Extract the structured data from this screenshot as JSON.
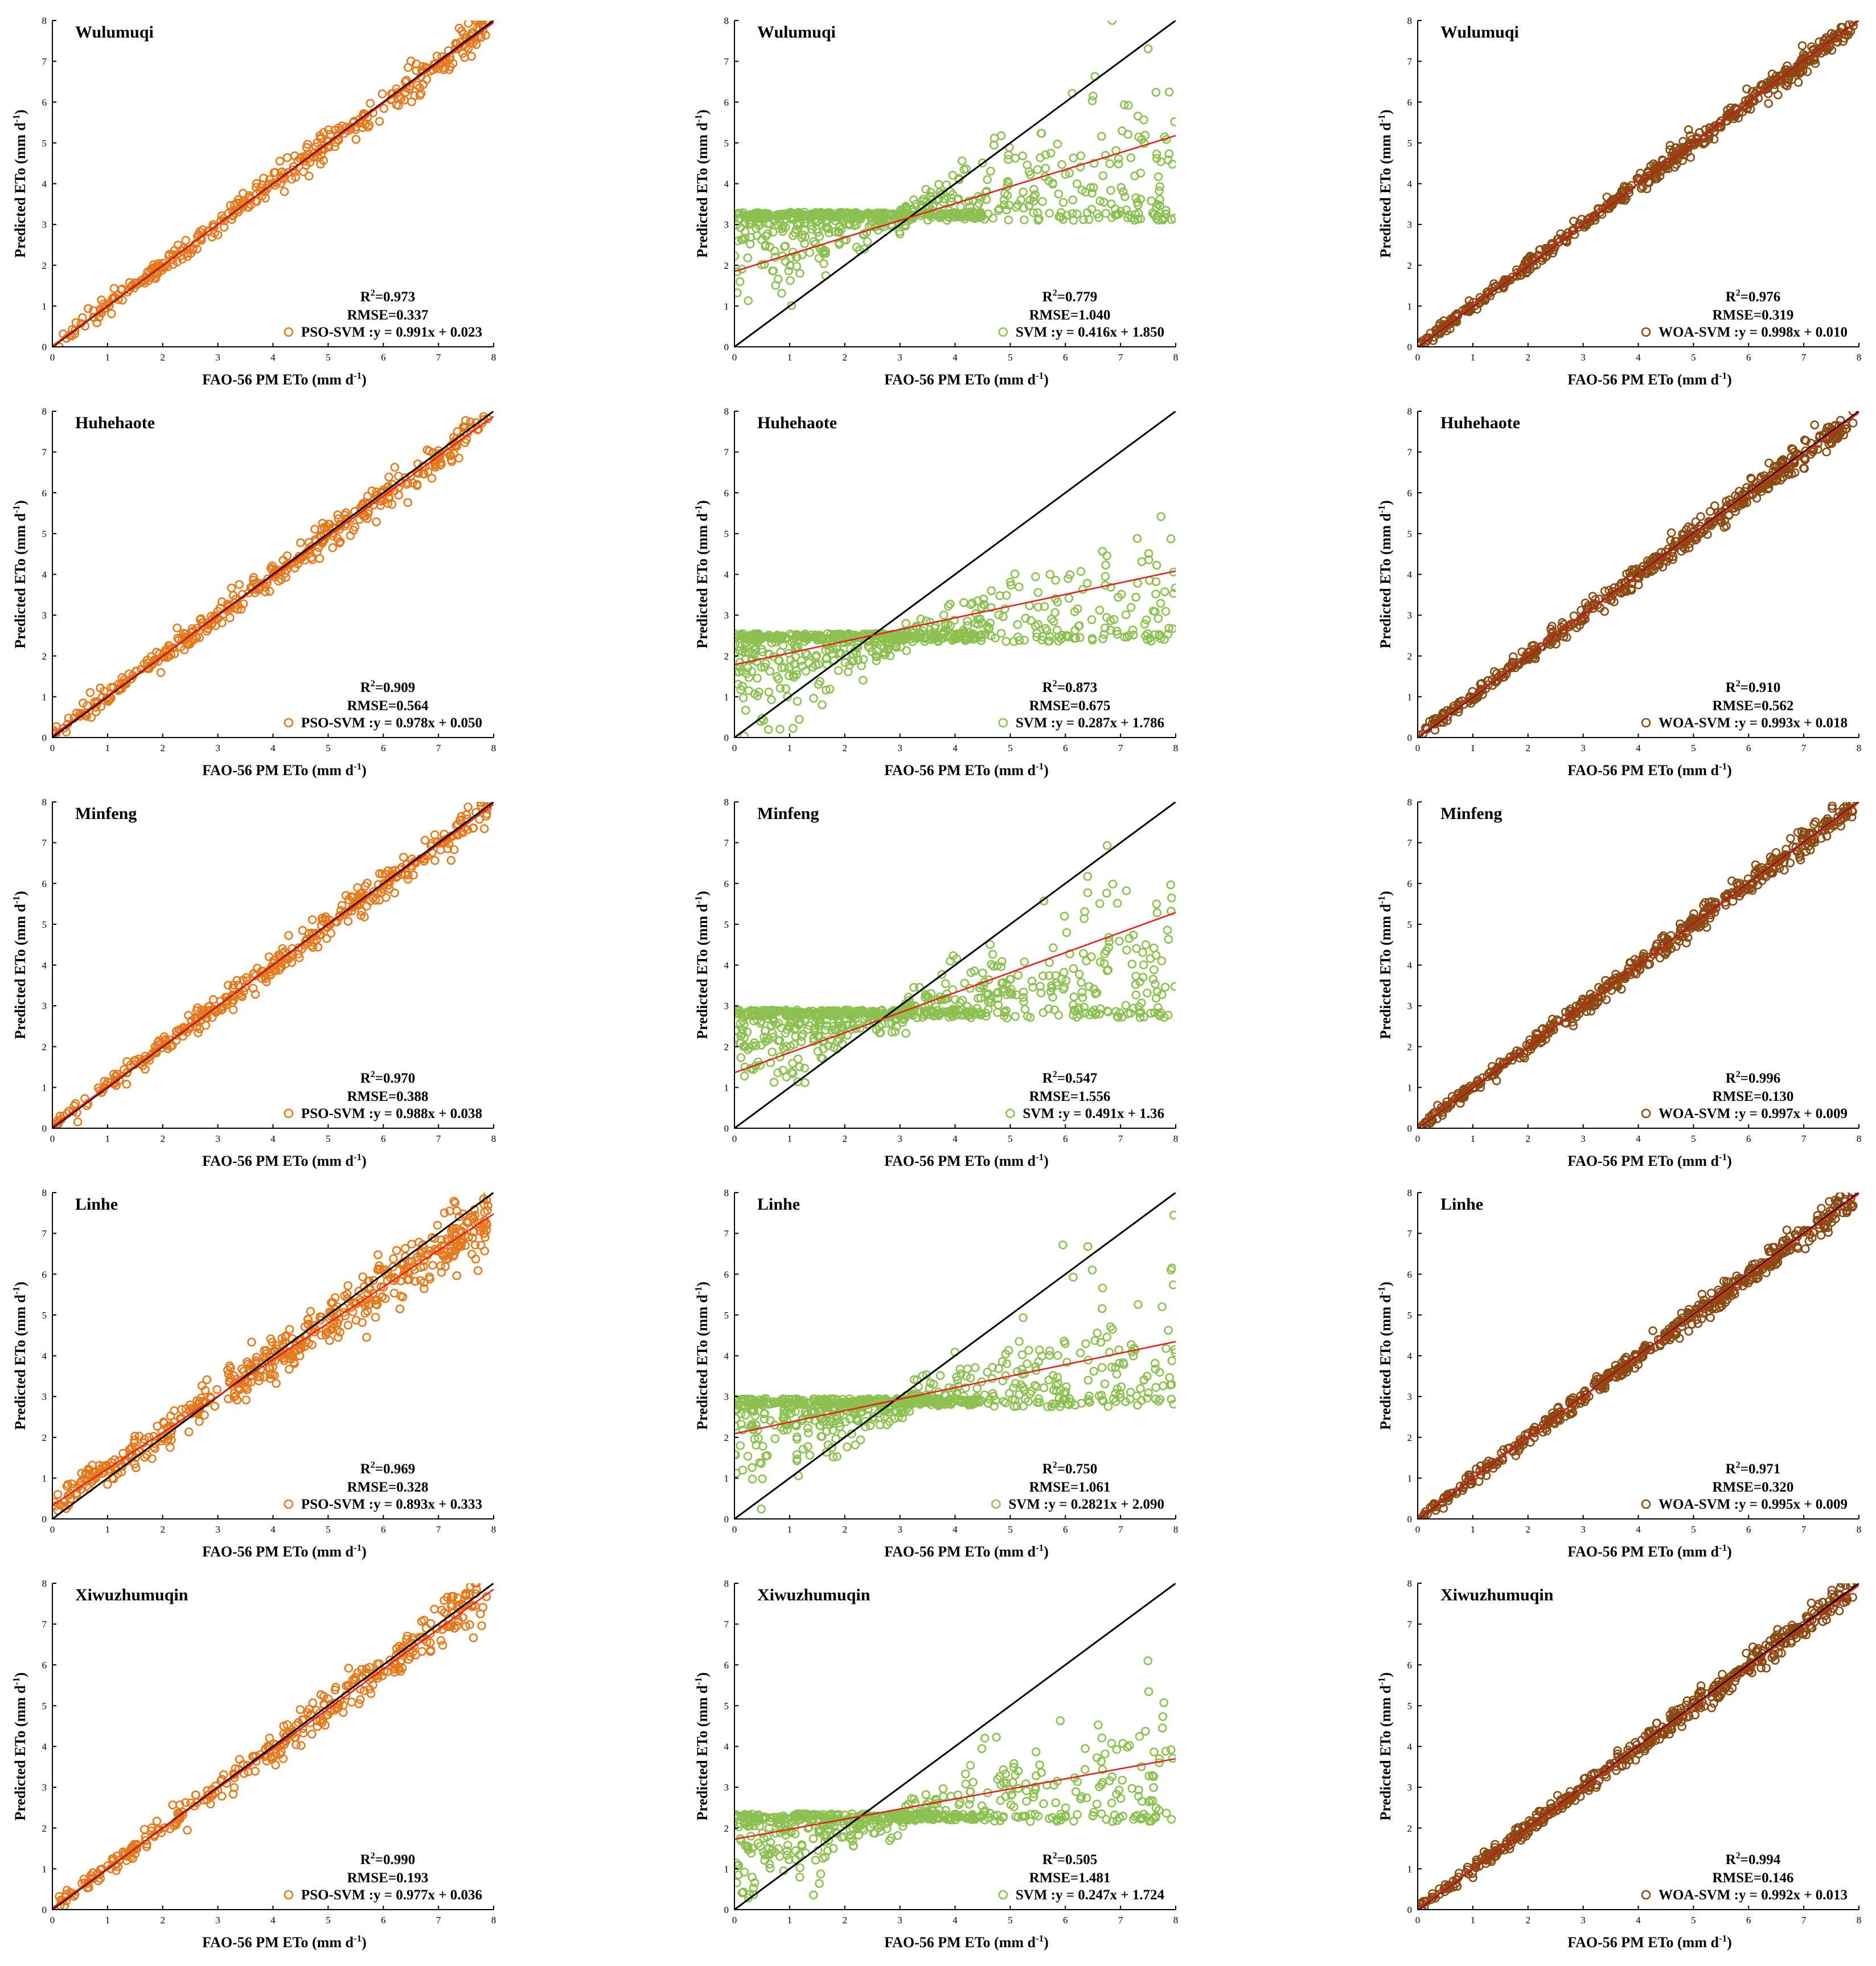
{
  "axis_labels": {
    "x": "FAO-56 PM ETo (mm d",
    "y": "Predicted ETo (mm d",
    "exponent": "-1",
    "unit_close": ")"
  },
  "colors": {
    "PSO-SVM": "#e37a1e",
    "SVM": "#8cc152",
    "WOA-SVM": "#8a4a12",
    "fit_line": "#e8201c",
    "identity_line": "#000000"
  },
  "chart_data": [
    {
      "type": "scatter",
      "station": "Wulumuqi",
      "model": "PSO-SVM",
      "r2": "0.973",
      "rmse": "0.337",
      "equation": "y = 0.991x + 0.023",
      "slope": 0.991,
      "intercept": 0.023,
      "xlim": [
        0,
        8
      ],
      "ylim": [
        0,
        8
      ],
      "ticks": [
        0,
        1,
        2,
        3,
        4,
        5,
        6,
        7,
        8
      ],
      "n_points": 360,
      "spread": 0.18,
      "floor": null
    },
    {
      "type": "scatter",
      "station": "Wulumuqi",
      "model": "SVM",
      "r2": "0.779",
      "rmse": "1.040",
      "equation": "y = 0.416x + 1.850",
      "slope": 0.416,
      "intercept": 1.85,
      "xlim": [
        0,
        8
      ],
      "ylim": [
        0,
        8
      ],
      "ticks": [
        0,
        1,
        2,
        3,
        4,
        5,
        6,
        7,
        8
      ],
      "n_points": 700,
      "spread": 0.9,
      "floor": 3.3
    },
    {
      "type": "scatter",
      "station": "Wulumuqi",
      "model": "WOA-SVM",
      "r2": "0.976",
      "rmse": "0.319",
      "equation": "y = 0.998x + 0.010",
      "slope": 0.998,
      "intercept": 0.01,
      "xlim": [
        0,
        8
      ],
      "ylim": [
        0,
        8
      ],
      "ticks": [
        0,
        1,
        2,
        3,
        4,
        5,
        6,
        7,
        8
      ],
      "n_points": 520,
      "spread": 0.12,
      "floor": null
    },
    {
      "type": "scatter",
      "station": "Huhehaote",
      "model": "PSO-SVM",
      "r2": "0.909",
      "rmse": "0.564",
      "equation": "y = 0.978x + 0.050",
      "slope": 0.978,
      "intercept": 0.05,
      "xlim": [
        0,
        8
      ],
      "ylim": [
        0,
        8
      ],
      "ticks": [
        0,
        1,
        2,
        3,
        4,
        5,
        6,
        7,
        8
      ],
      "n_points": 380,
      "spread": 0.2,
      "floor": null
    },
    {
      "type": "scatter",
      "station": "Huhehaote",
      "model": "SVM",
      "r2": "0.873",
      "rmse": "0.675",
      "equation": "y = 0.287x + 1.786",
      "slope": 0.287,
      "intercept": 1.786,
      "xlim": [
        0,
        8
      ],
      "ylim": [
        0,
        8
      ],
      "ticks": [
        0,
        1,
        2,
        3,
        4,
        5,
        6,
        7,
        8
      ],
      "n_points": 650,
      "spread": 0.7,
      "floor": 2.55
    },
    {
      "type": "scatter",
      "station": "Huhehaote",
      "model": "WOA-SVM",
      "r2": "0.910",
      "rmse": "0.562",
      "equation": "y = 0.993x + 0.018",
      "slope": 0.993,
      "intercept": 0.018,
      "xlim": [
        0,
        8
      ],
      "ylim": [
        0,
        8
      ],
      "ticks": [
        0,
        1,
        2,
        3,
        4,
        5,
        6,
        7,
        8
      ],
      "n_points": 500,
      "spread": 0.14,
      "floor": null
    },
    {
      "type": "scatter",
      "station": "Minfeng",
      "model": "PSO-SVM",
      "r2": "0.970",
      "rmse": "0.388",
      "equation": "y = 0.988x + 0.038",
      "slope": 0.988,
      "intercept": 0.038,
      "xlim": [
        0,
        8
      ],
      "ylim": [
        0,
        8
      ],
      "ticks": [
        0,
        1,
        2,
        3,
        4,
        5,
        6,
        7,
        8
      ],
      "n_points": 380,
      "spread": 0.18,
      "floor": null
    },
    {
      "type": "scatter",
      "station": "Minfeng",
      "model": "SVM",
      "r2": "0.547",
      "rmse": "1.556",
      "equation": "y = 0.491x + 1.36",
      "slope": 0.491,
      "intercept": 1.36,
      "xlim": [
        0,
        8
      ],
      "ylim": [
        0,
        8
      ],
      "ticks": [
        0,
        1,
        2,
        3,
        4,
        5,
        6,
        7,
        8
      ],
      "n_points": 700,
      "spread": 0.85,
      "floor": 2.9
    },
    {
      "type": "scatter",
      "station": "Minfeng",
      "model": "WOA-SVM",
      "r2": "0.996",
      "rmse": "0.130",
      "equation": "y = 0.997x + 0.009",
      "slope": 0.997,
      "intercept": 0.009,
      "xlim": [
        0,
        8
      ],
      "ylim": [
        0,
        8
      ],
      "ticks": [
        0,
        1,
        2,
        3,
        4,
        5,
        6,
        7,
        8
      ],
      "n_points": 500,
      "spread": 0.13,
      "floor": null
    },
    {
      "type": "scatter",
      "station": "Linhe",
      "model": "PSO-SVM",
      "r2": "0.969",
      "rmse": "0.328",
      "equation": "y = 0.893x + 0.333",
      "slope": 0.893,
      "intercept": 0.333,
      "xlim": [
        0,
        8
      ],
      "ylim": [
        0,
        8
      ],
      "ticks": [
        0,
        1,
        2,
        3,
        4,
        5,
        6,
        7,
        8
      ],
      "n_points": 520,
      "spread": 0.3,
      "floor": null
    },
    {
      "type": "scatter",
      "station": "Linhe",
      "model": "SVM",
      "r2": "0.750",
      "rmse": "1.061",
      "equation": "y = 0.2821x + 2.090",
      "slope": 0.2821,
      "intercept": 2.09,
      "xlim": [
        0,
        8
      ],
      "ylim": [
        0,
        8
      ],
      "ticks": [
        0,
        1,
        2,
        3,
        4,
        5,
        6,
        7,
        8
      ],
      "n_points": 720,
      "spread": 0.8,
      "floor": 2.95
    },
    {
      "type": "scatter",
      "station": "Linhe",
      "model": "WOA-SVM",
      "r2": "0.971",
      "rmse": "0.320",
      "equation": "y = 0.995x + 0.009",
      "slope": 0.995,
      "intercept": 0.009,
      "xlim": [
        0,
        8
      ],
      "ylim": [
        0,
        8
      ],
      "ticks": [
        0,
        1,
        2,
        3,
        4,
        5,
        6,
        7,
        8
      ],
      "n_points": 520,
      "spread": 0.14,
      "floor": null
    },
    {
      "type": "scatter",
      "station": "Xiwuzhumuqin",
      "model": "PSO-SVM",
      "r2": "0.990",
      "rmse": "0.193",
      "equation": "y = 0.977x + 0.036",
      "slope": 0.977,
      "intercept": 0.036,
      "xlim": [
        0,
        8
      ],
      "ylim": [
        0,
        8
      ],
      "ticks": [
        0,
        1,
        2,
        3,
        4,
        5,
        6,
        7,
        8
      ],
      "n_points": 360,
      "spread": 0.2,
      "floor": null
    },
    {
      "type": "scatter",
      "station": "Xiwuzhumuqin",
      "model": "SVM",
      "r2": "0.505",
      "rmse": "1.481",
      "equation": "y = 0.247x + 1.724",
      "slope": 0.247,
      "intercept": 1.724,
      "xlim": [
        0,
        8
      ],
      "ylim": [
        0,
        8
      ],
      "ticks": [
        0,
        1,
        2,
        3,
        4,
        5,
        6,
        7,
        8
      ],
      "n_points": 600,
      "spread": 0.7,
      "floor": 2.35
    },
    {
      "type": "scatter",
      "station": "Xiwuzhumuqin",
      "model": "WOA-SVM",
      "r2": "0.994",
      "rmse": "0.146",
      "equation": "y = 0.992x + 0.013",
      "slope": 0.992,
      "intercept": 0.013,
      "xlim": [
        0,
        8
      ],
      "ylim": [
        0,
        8
      ],
      "ticks": [
        0,
        1,
        2,
        3,
        4,
        5,
        6,
        7,
        8
      ],
      "n_points": 500,
      "spread": 0.14,
      "floor": null
    }
  ]
}
